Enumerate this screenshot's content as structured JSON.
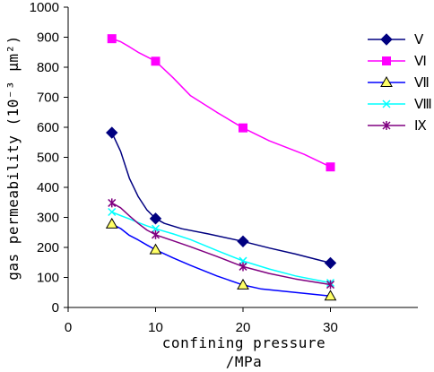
{
  "chart_data": {
    "type": "line",
    "xlabel_line1": "confining pressure",
    "xlabel_line2": "/MPa",
    "ylabel": "gas permeability (10⁻³ μm²)",
    "x_ticks": [
      0,
      10,
      20,
      30
    ],
    "y_ticks": [
      0,
      100,
      200,
      300,
      400,
      500,
      600,
      700,
      800,
      900,
      1000
    ],
    "xlim": [
      0,
      40
    ],
    "ylim": [
      0,
      1000
    ],
    "grid": false,
    "legend_position": "top-right",
    "series": [
      {
        "name": "Ⅴ",
        "color": "#000080",
        "marker": "diamond",
        "x": [
          5,
          10,
          20,
          30
        ],
        "y": [
          582,
          296,
          220,
          148
        ],
        "curve": [
          [
            5,
            582
          ],
          [
            6,
            520
          ],
          [
            7,
            430
          ],
          [
            8,
            370
          ],
          [
            9,
            325
          ],
          [
            10,
            296
          ],
          [
            11,
            280
          ],
          [
            13,
            262
          ],
          [
            16,
            245
          ],
          [
            20,
            220
          ],
          [
            23,
            198
          ],
          [
            26,
            178
          ],
          [
            30,
            148
          ]
        ]
      },
      {
        "name": "Ⅵ",
        "color": "#FF00FF",
        "marker": "square",
        "x": [
          5,
          10,
          20,
          30
        ],
        "y": [
          895,
          820,
          598,
          468
        ],
        "curve": [
          [
            5,
            895
          ],
          [
            6,
            885
          ],
          [
            7,
            868
          ],
          [
            8,
            850
          ],
          [
            9,
            835
          ],
          [
            10,
            820
          ],
          [
            12,
            765
          ],
          [
            14,
            705
          ],
          [
            17,
            650
          ],
          [
            20,
            598
          ],
          [
            23,
            555
          ],
          [
            27,
            510
          ],
          [
            30,
            468
          ]
        ]
      },
      {
        "name": "Ⅶ",
        "color": "#0000FF",
        "marker": "triangle",
        "x": [
          5,
          10,
          20,
          30
        ],
        "y": [
          278,
          192,
          75,
          38
        ],
        "curve": [
          [
            5,
            278
          ],
          [
            6,
            263
          ],
          [
            7,
            240
          ],
          [
            8,
            225
          ],
          [
            9,
            208
          ],
          [
            10,
            192
          ],
          [
            12,
            165
          ],
          [
            14,
            140
          ],
          [
            17,
            105
          ],
          [
            20,
            75
          ],
          [
            22,
            62
          ],
          [
            26,
            50
          ],
          [
            30,
            38
          ]
        ]
      },
      {
        "name": "Ⅷ",
        "color": "#00FFFF",
        "marker": "x",
        "x": [
          5,
          10,
          20,
          30
        ],
        "y": [
          318,
          262,
          155,
          82
        ],
        "curve": [
          [
            5,
            318
          ],
          [
            6,
            306
          ],
          [
            7,
            295
          ],
          [
            8,
            283
          ],
          [
            9,
            272
          ],
          [
            10,
            262
          ],
          [
            12,
            245
          ],
          [
            14,
            226
          ],
          [
            17,
            190
          ],
          [
            20,
            155
          ],
          [
            23,
            128
          ],
          [
            26,
            105
          ],
          [
            30,
            82
          ]
        ]
      },
      {
        "name": "Ⅸ",
        "color": "#800080",
        "marker": "star",
        "x": [
          5,
          10,
          20,
          30
        ],
        "y": [
          348,
          242,
          136,
          76
        ],
        "curve": [
          [
            5,
            348
          ],
          [
            6,
            332
          ],
          [
            7,
            305
          ],
          [
            8,
            280
          ],
          [
            9,
            258
          ],
          [
            10,
            242
          ],
          [
            12,
            222
          ],
          [
            14,
            202
          ],
          [
            17,
            170
          ],
          [
            20,
            136
          ],
          [
            23,
            113
          ],
          [
            26,
            95
          ],
          [
            30,
            76
          ]
        ]
      }
    ]
  }
}
